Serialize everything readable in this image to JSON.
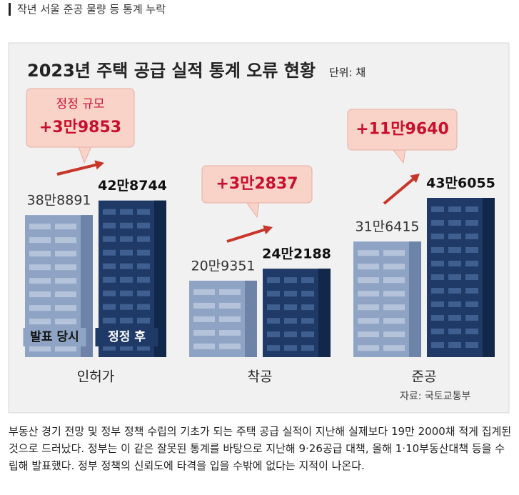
{
  "header": {
    "title": "작년 서울 준공 물량 등 통계 누락"
  },
  "chart_data": {
    "type": "bar",
    "title": "2023년 주택 공급 실적 통계 오류 현황",
    "unit": "단위: 채",
    "source": "자료: 국토교통부",
    "categories": [
      "인허가",
      "착공",
      "준공"
    ],
    "series": [
      {
        "name": "발표 당시",
        "color": "#8fa4c4",
        "values": [
          388891,
          209351,
          316415
        ],
        "value_labels": [
          "38만8891",
          "20만9351",
          "31만6415"
        ]
      },
      {
        "name": "정정 후",
        "color": "#1f3a66",
        "values": [
          428744,
          242188,
          436055
        ],
        "value_labels": [
          "42만8744",
          "24만2188",
          "43만6055"
        ]
      }
    ],
    "annotation_title": "정정 규모",
    "annotations": [
      "+3만9853",
      "+3만2837",
      "+11만9640"
    ]
  },
  "body": {
    "text": "부동산 경기 전망 및 정부 정책 수립의 기초가 되는 주택 공급 실적이 지난해 실제보다 19만 2000채 적게 집계된 것으로 드러났다. 정부는 이 같은 잘못된 통계를 바탕으로 지난해 9·26공급 대책, 올해 1·10부동산대책 등을 수립해 발표했다. 정부 정책의 신뢰도에 타격을 입을 수밖에 없다는 지적이 나온다."
  }
}
